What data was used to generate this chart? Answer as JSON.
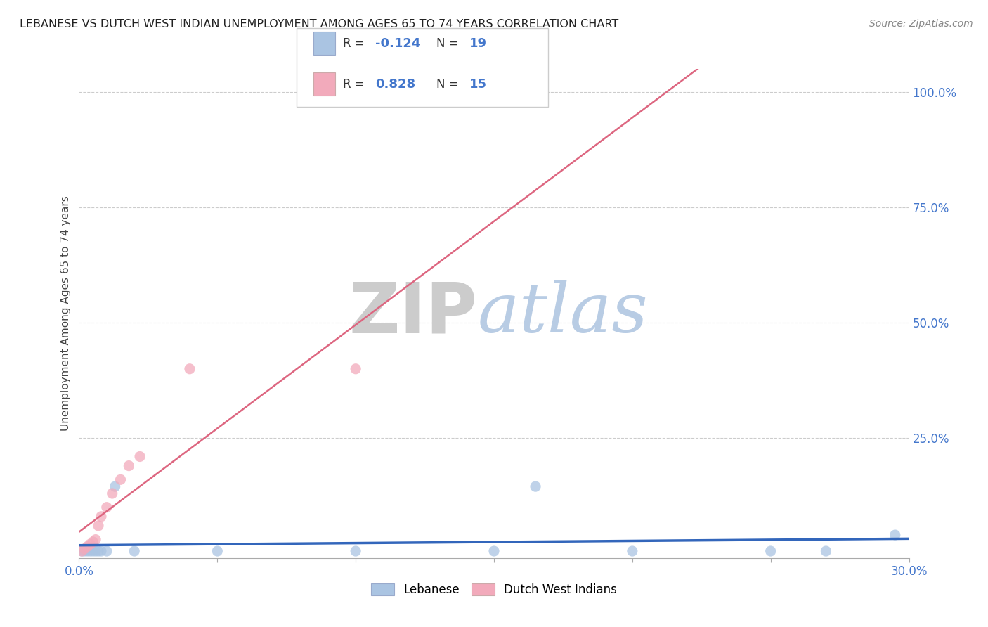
{
  "title": "LEBANESE VS DUTCH WEST INDIAN UNEMPLOYMENT AMONG AGES 65 TO 74 YEARS CORRELATION CHART",
  "source": "Source: ZipAtlas.com",
  "xlim": [
    0.0,
    0.3
  ],
  "ylim": [
    -0.01,
    1.05
  ],
  "watermark_zip": "ZIP",
  "watermark_atlas": "atlas",
  "lebanese_R": -0.124,
  "lebanese_N": 19,
  "dutch_R": 0.828,
  "dutch_N": 15,
  "lebanese_color": "#aac4e2",
  "dutch_color": "#f2aabb",
  "lebanese_line_color": "#3366bb",
  "dutch_line_color": "#dd6680",
  "grid_color": "#cccccc",
  "background_color": "#ffffff",
  "lebanese_x": [
    0.001,
    0.002,
    0.003,
    0.004,
    0.005,
    0.006,
    0.007,
    0.008,
    0.01,
    0.013,
    0.02,
    0.05,
    0.1,
    0.15,
    0.165,
    0.2,
    0.25,
    0.27,
    0.295
  ],
  "lebanese_y": [
    0.005,
    0.005,
    0.005,
    0.005,
    0.005,
    0.005,
    0.005,
    0.005,
    0.005,
    0.145,
    0.005,
    0.005,
    0.005,
    0.005,
    0.145,
    0.005,
    0.005,
    0.005,
    0.04
  ],
  "dutch_x": [
    0.001,
    0.002,
    0.003,
    0.004,
    0.005,
    0.006,
    0.007,
    0.008,
    0.01,
    0.012,
    0.015,
    0.018,
    0.022,
    0.04,
    0.1
  ],
  "dutch_y": [
    0.005,
    0.01,
    0.015,
    0.02,
    0.025,
    0.03,
    0.06,
    0.08,
    0.1,
    0.13,
    0.16,
    0.19,
    0.21,
    0.4,
    0.4
  ]
}
